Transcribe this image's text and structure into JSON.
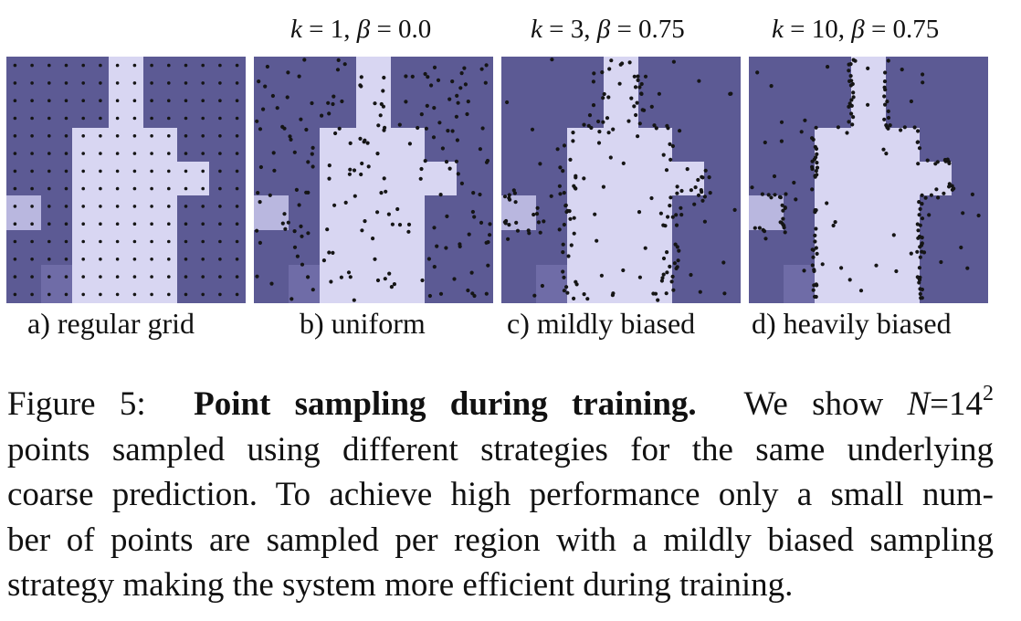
{
  "figure": {
    "colors": {
      "background_region": "#5c5a94",
      "object_region": "#d8d6f2",
      "mid_region": "#b9b7df",
      "dark_region": "#6f6ca7",
      "point": "#151515"
    },
    "panels": [
      {
        "id": "a",
        "param_prefix": "",
        "param_k": "",
        "param_beta": "",
        "label": "a) regular grid",
        "sampling": "regular-grid"
      },
      {
        "id": "b",
        "param_prefix": "k",
        "param_k": " = 1, ",
        "param_beta_symbol": "β",
        "param_beta": " = 0.0",
        "label": "b) uniform",
        "sampling": "uniform",
        "k": 1,
        "beta": 0.0
      },
      {
        "id": "c",
        "param_prefix": "k",
        "param_k": " = 3, ",
        "param_beta_symbol": "β",
        "param_beta": " = 0.75",
        "label": "c) mildly biased",
        "sampling": "mildly-biased",
        "k": 3,
        "beta": 0.75
      },
      {
        "id": "d",
        "param_prefix": "k",
        "param_k": " = 10, ",
        "param_beta_symbol": "β",
        "param_beta": " = 0.75",
        "label": "d) heavily biased",
        "sampling": "heavily-biased",
        "k": 10,
        "beta": 0.75
      }
    ],
    "num_points": 196,
    "grid_size": 14
  },
  "caption": {
    "prefix": "Figure 5:",
    "title": "Point sampling during training.",
    "line1_text": "We show",
    "math_n": "N",
    "math_eq": "=14",
    "math_exp": "2",
    "line2": "points sampled using different strategies for the same underlying",
    "line3": "coarse prediction. To achieve high performance only a small num-",
    "line4": "ber of points are sampled per region with a mildly biased sampling",
    "line5": "strategy making the system more efficient during training."
  }
}
